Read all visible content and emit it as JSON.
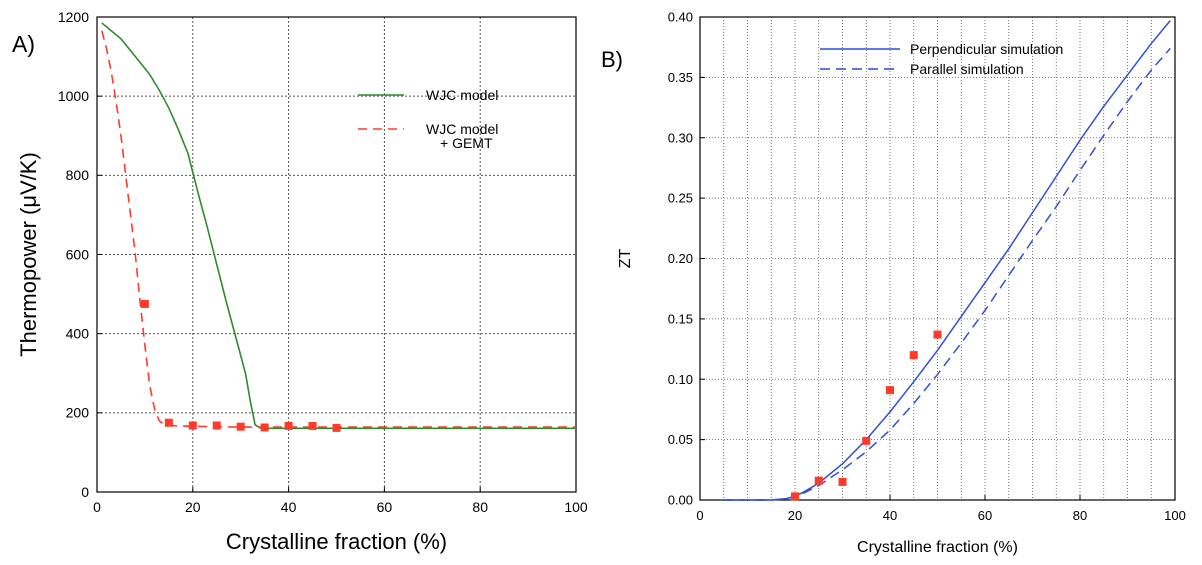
{
  "chart_data": [
    {
      "panel_label": "A)",
      "type": "line",
      "xlabel": "Crystalline fraction (%)",
      "ylabel": "Thermopower (μV/K)",
      "xlim": [
        0,
        100
      ],
      "ylim": [
        0,
        1200
      ],
      "xticks": [
        0,
        20,
        40,
        60,
        80,
        100
      ],
      "xtick_labels": [
        "0",
        "20",
        "40",
        "60",
        "80",
        "100"
      ],
      "yticks": [
        0,
        200,
        400,
        600,
        800,
        1000,
        1200
      ],
      "ytick_labels": [
        "0",
        "200",
        "400",
        "600",
        "800",
        "1000",
        "1200"
      ],
      "grid": true,
      "legend_position": "top-right",
      "series": [
        {
          "name": "WJC model",
          "style": "solid",
          "color": "#2e8b2e",
          "x": [
            1,
            3,
            5,
            7,
            9,
            11,
            13,
            15,
            17,
            19,
            21,
            23,
            25,
            27,
            29,
            31,
            32,
            33,
            34,
            35,
            40,
            50,
            60,
            70,
            80,
            90,
            100
          ],
          "y": [
            1185,
            1165,
            1145,
            1115,
            1085,
            1055,
            1015,
            970,
            915,
            855,
            760,
            670,
            575,
            480,
            390,
            300,
            230,
            170,
            162,
            161,
            161,
            161,
            161,
            161,
            161,
            161,
            161
          ]
        },
        {
          "name": "WJC model\n+ GEMT",
          "style": "dashed",
          "color": "#ff3a2a",
          "x": [
            1,
            2,
            3,
            4,
            5,
            6,
            7,
            8,
            9,
            10,
            11,
            12,
            13,
            14,
            15,
            17,
            20,
            25,
            30,
            35,
            40,
            50,
            60,
            70,
            80,
            90,
            100
          ],
          "y": [
            1165,
            1120,
            1060,
            985,
            900,
            800,
            700,
            600,
            480,
            370,
            270,
            210,
            180,
            170,
            168,
            167,
            166,
            165,
            164,
            164,
            164,
            164,
            164,
            164,
            164,
            164,
            164
          ]
        },
        {
          "name": "",
          "style": "markers",
          "color": "#ff3a2a",
          "x": [
            10,
            15,
            20,
            25,
            30,
            35,
            40,
            45,
            50
          ],
          "y": [
            475,
            175,
            168,
            168,
            165,
            163,
            167,
            167,
            162
          ]
        }
      ]
    },
    {
      "panel_label": "B)",
      "type": "line",
      "xlabel": "Crystalline fraction (%)",
      "ylabel": "ZT",
      "xlim": [
        0,
        100
      ],
      "ylim": [
        0,
        0.4
      ],
      "xticks": [
        0,
        20,
        40,
        60,
        80,
        100
      ],
      "xtick_labels": [
        "0",
        "20",
        "40",
        "60",
        "80",
        "100"
      ],
      "yticks": [
        0,
        0.05,
        0.1,
        0.15,
        0.2,
        0.25,
        0.3,
        0.35,
        0.4
      ],
      "ytick_labels": [
        "0.00",
        "0.05",
        "0.10",
        "0.15",
        "0.20",
        "0.25",
        "0.30",
        "0.35",
        "0.40"
      ],
      "grid": true,
      "grid_x_step": 5,
      "legend_position": "top-left",
      "series": [
        {
          "name": "Perpendicular simulation",
          "style": "solid",
          "color": "#2f4fd6",
          "x": [
            5,
            10,
            15,
            18,
            20,
            22,
            25,
            30,
            35,
            40,
            45,
            50,
            55,
            60,
            65,
            70,
            75,
            80,
            85,
            90,
            95,
            99
          ],
          "y": [
            0,
            0,
            0,
            0.001,
            0.003,
            0.007,
            0.014,
            0.03,
            0.05,
            0.073,
            0.098,
            0.124,
            0.152,
            0.18,
            0.208,
            0.238,
            0.268,
            0.298,
            0.326,
            0.352,
            0.378,
            0.397
          ]
        },
        {
          "name": "Parallel simulation",
          "style": "dashed",
          "color": "#2f4fd6",
          "x": [
            5,
            10,
            15,
            18,
            20,
            22,
            25,
            30,
            35,
            40,
            45,
            50,
            55,
            60,
            65,
            70,
            75,
            80,
            85,
            90,
            95,
            99
          ],
          "y": [
            0,
            0,
            0,
            0.001,
            0.003,
            0.006,
            0.012,
            0.025,
            0.04,
            0.058,
            0.08,
            0.104,
            0.13,
            0.157,
            0.186,
            0.215,
            0.243,
            0.273,
            0.302,
            0.33,
            0.356,
            0.374
          ]
        },
        {
          "name": "",
          "style": "markers",
          "color": "#ff3a2a",
          "x": [
            20,
            25,
            30,
            35,
            40,
            45,
            50
          ],
          "y": [
            0.003,
            0.016,
            0.015,
            0.049,
            0.091,
            0.12,
            0.137
          ]
        }
      ]
    }
  ]
}
